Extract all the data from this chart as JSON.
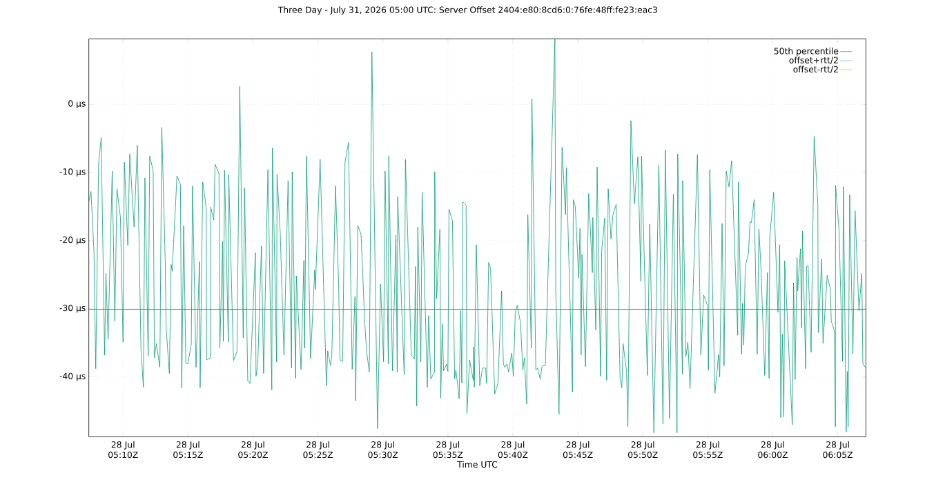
{
  "chart_data": {
    "type": "line",
    "title": "Three Day - July 31, 2026 05:00 UTC: Server Offset 2404:e80:8cd6:0:76fe:48ff:fe23:eac3",
    "xlabel": "Time UTC",
    "xlim": [
      "2026-07-28T05:07:22",
      "2026-07-28T06:07:10"
    ],
    "ylim": [
      -48.8,
      9.6
    ],
    "xticks": [
      {
        "value": "2026-07-28T05:10",
        "label": "28 Jul 05:10Z"
      },
      {
        "value": "2026-07-28T05:15",
        "label": "28 Jul 05:15Z"
      },
      {
        "value": "2026-07-28T05:20",
        "label": "28 Jul 05:20Z"
      },
      {
        "value": "2026-07-28T05:25",
        "label": "28 Jul 05:25Z"
      },
      {
        "value": "2026-07-28T05:30",
        "label": "28 Jul 05:30Z"
      },
      {
        "value": "2026-07-28T05:35",
        "label": "28 Jul 05:35Z"
      },
      {
        "value": "2026-07-28T05:40",
        "label": "28 Jul 05:40Z"
      },
      {
        "value": "2026-07-28T05:45",
        "label": "28 Jul 05:45Z"
      },
      {
        "value": "2026-07-28T05:50",
        "label": "28 Jul 05:50Z"
      },
      {
        "value": "2026-07-28T05:55",
        "label": "28 Jul 05:55Z"
      },
      {
        "value": "2026-07-28T06:00",
        "label": "28 Jul 06:00Z"
      },
      {
        "value": "2026-07-28T06:05",
        "label": "28 Jul 06:05Z"
      }
    ],
    "yticks": [
      {
        "value": -40,
        "label": "-40 µs"
      },
      {
        "value": -30,
        "label": "-30 µs"
      },
      {
        "value": -20,
        "label": "-20 µs"
      },
      {
        "value": -10,
        "label": "-10 µs"
      },
      {
        "value": 0,
        "label": "0 µs"
      }
    ],
    "grid": true,
    "legend": "top right",
    "marker": "none",
    "line_style": "solid",
    "series": [
      {
        "name": "50th percentile",
        "color": "#9400d3",
        "x": [
          "2026-07-28T05:07:22",
          "2026-07-28T06:07:10"
        ],
        "values": [
          -30.1,
          -30.1
        ]
      },
      {
        "color": "#009e73",
        "x": [
          "2026-07-28T05:07:22",
          "2026-07-28T05:07:32",
          "2026-07-28T05:07:46",
          "2026-07-28T05:07:54",
          "2026-07-28T05:08:07",
          "2026-07-28T05:08:19",
          "2026-07-28T05:08:35",
          "2026-07-28T05:08:41",
          "2026-07-28T05:08:51",
          "2026-07-28T05:09:10",
          "2026-07-28T05:09:22",
          "2026-07-28T05:09:32",
          "2026-07-28T05:09:48",
          "2026-07-28T05:10:00",
          "2026-07-28T05:10:06",
          "2026-07-28T05:10:22",
          "2026-07-28T05:10:31",
          "2026-07-28T05:10:51",
          "2026-07-28T05:11:06",
          "2026-07-28T05:11:23",
          "2026-07-28T05:11:34",
          "2026-07-28T05:11:41",
          "2026-07-28T05:11:56",
          "2026-07-28T05:12:03",
          "2026-07-28T05:12:19",
          "2026-07-28T05:12:25",
          "2026-07-28T05:12:34",
          "2026-07-28T05:12:50",
          "2026-07-28T05:12:59",
          "2026-07-28T05:13:15",
          "2026-07-28T05:13:19",
          "2026-07-28T05:13:34",
          "2026-07-28T05:13:42",
          "2026-07-28T05:13:47",
          "2026-07-28T05:14:09",
          "2026-07-28T05:14:25",
          "2026-07-28T05:14:31",
          "2026-07-28T05:14:40",
          "2026-07-28T05:14:50",
          "2026-07-28T05:14:59",
          "2026-07-28T05:15:15",
          "2026-07-28T05:15:21",
          "2026-07-28T05:15:37",
          "2026-07-28T05:15:53",
          "2026-07-28T05:15:56",
          "2026-07-28T05:16:08",
          "2026-07-28T05:16:24",
          "2026-07-28T05:16:26",
          "2026-07-28T05:16:43",
          "2026-07-28T05:16:45",
          "2026-07-28T05:16:59",
          "2026-07-28T05:17:05",
          "2026-07-28T05:17:23",
          "2026-07-28T05:17:27",
          "2026-07-28T05:17:40",
          "2026-07-28T05:17:43",
          "2026-07-28T05:17:49",
          "2026-07-28T05:18:06",
          "2026-07-28T05:18:08",
          "2026-07-28T05:18:30",
          "2026-07-28T05:18:46",
          "2026-07-28T05:18:59",
          "2026-07-28T05:19:15",
          "2026-07-28T05:19:21",
          "2026-07-28T05:19:36",
          "2026-07-28T05:19:46",
          "2026-07-28T05:20:11",
          "2026-07-28T05:20:14",
          "2026-07-28T05:20:22",
          "2026-07-28T05:20:39",
          "2026-07-28T05:20:49",
          "2026-07-28T05:21:09",
          "2026-07-28T05:21:27",
          "2026-07-28T05:21:30",
          "2026-07-28T05:21:49",
          "2026-07-28T05:21:51",
          "2026-07-28T05:22:06",
          "2026-07-28T05:22:23",
          "2026-07-28T05:22:42",
          "2026-07-28T05:22:58",
          "2026-07-28T05:23:01",
          "2026-07-28T05:23:17",
          "2026-07-28T05:23:20",
          "2026-07-28T05:23:42",
          "2026-07-28T05:23:55",
          "2026-07-28T05:23:58",
          "2026-07-28T05:24:07",
          "2026-07-28T05:24:26",
          "2026-07-28T05:24:45",
          "2026-07-28T05:24:48",
          "2026-07-28T05:25:10",
          "2026-07-28T05:25:39",
          "2026-07-28T05:25:45",
          "2026-07-28T05:25:58",
          "2026-07-28T05:26:04",
          "2026-07-28T05:26:21",
          "2026-07-28T05:26:35",
          "2026-07-28T05:26:42",
          "2026-07-28T05:26:54",
          "2026-07-28T05:27:05",
          "2026-07-28T05:27:21",
          "2026-07-28T05:27:38",
          "2026-07-28T05:27:51",
          "2026-07-28T05:27:54",
          "2026-07-28T05:28:04",
          "2026-07-28T05:28:19",
          "2026-07-28T05:28:36",
          "2026-07-28T05:28:44",
          "2026-07-28T05:28:57",
          "2026-07-28T05:29:09",
          "2026-07-28T05:29:35",
          "2026-07-28T05:29:49",
          "2026-07-28T05:30:03",
          "2026-07-28T05:30:10",
          "2026-07-28T05:30:25",
          "2026-07-28T05:30:27",
          "2026-07-28T05:30:44",
          "2026-07-28T05:31:00",
          "2026-07-28T05:31:06",
          "2026-07-28T05:31:08",
          "2026-07-28T05:31:38",
          "2026-07-28T05:31:44",
          "2026-07-28T05:32:11",
          "2026-07-28T05:32:25",
          "2026-07-28T05:32:30",
          "2026-07-28T05:32:36",
          "2026-07-28T05:32:41",
          "2026-07-28T05:32:55",
          "2026-07-28T05:33:01",
          "2026-07-28T05:33:25",
          "2026-07-28T05:33:31",
          "2026-07-28T05:33:41",
          "2026-07-28T05:33:58",
          "2026-07-28T05:33:59",
          "2026-07-28T05:34:08",
          "2026-07-28T05:34:23",
          "2026-07-28T05:34:27",
          "2026-07-28T05:34:34",
          "2026-07-28T05:34:40",
          "2026-07-28T05:34:55",
          "2026-07-28T05:35:00",
          "2026-07-28T05:35:05",
          "2026-07-28T05:35:21",
          "2026-07-28T05:35:31",
          "2026-07-28T05:35:37",
          "2026-07-28T05:35:52",
          "2026-07-28T05:35:59",
          "2026-07-28T05:36:04",
          "2026-07-28T05:36:09",
          "2026-07-28T05:36:24",
          "2026-07-28T05:36:28",
          "2026-07-28T05:36:40",
          "2026-07-28T05:36:57",
          "2026-07-28T05:36:59",
          "2026-07-28T05:37:02",
          "2026-07-28T05:37:11",
          "2026-07-28T05:37:27",
          "2026-07-28T05:37:40",
          "2026-07-28T05:37:54",
          "2026-07-28T05:37:59",
          "2026-07-28T05:38:08",
          "2026-07-28T05:38:17",
          "2026-07-28T05:38:36",
          "2026-07-28T05:38:51",
          "2026-07-28T05:39:08",
          "2026-07-28T05:39:16",
          "2026-07-28T05:39:23",
          "2026-07-28T05:39:33",
          "2026-07-28T05:39:40",
          "2026-07-28T05:39:55",
          "2026-07-28T05:40:02",
          "2026-07-28T05:40:11",
          "2026-07-28T05:40:20",
          "2026-07-28T05:40:35",
          "2026-07-28T05:40:46",
          "2026-07-28T05:40:53",
          "2026-07-28T05:41:04",
          "2026-07-28T05:41:09",
          "2026-07-28T05:41:25",
          "2026-07-28T05:41:28",
          "2026-07-28T05:41:46",
          "2026-07-28T05:41:54",
          "2026-07-28T05:42:06",
          "2026-07-28T05:42:15",
          "2026-07-28T05:42:30",
          "2026-07-28T05:43:14",
          "2026-07-28T05:43:18",
          "2026-07-28T05:43:33",
          "2026-07-28T05:43:47",
          "2026-07-28T05:44:03",
          "2026-07-28T05:44:07",
          "2026-07-28T05:44:35",
          "2026-07-28T05:44:39",
          "2026-07-28T05:44:48",
          "2026-07-28T05:45:04",
          "2026-07-28T05:45:10",
          "2026-07-28T05:45:15",
          "2026-07-28T05:45:19",
          "2026-07-28T05:45:35",
          "2026-07-28T05:45:50",
          "2026-07-28T05:46:07",
          "2026-07-28T05:46:09",
          "2026-07-28T05:46:23",
          "2026-07-28T05:46:29",
          "2026-07-28T05:46:45",
          "2026-07-28T05:46:50",
          "2026-07-28T05:47:04",
          "2026-07-28T05:47:13",
          "2026-07-28T05:47:20",
          "2026-07-28T05:47:33",
          "2026-07-28T05:47:42",
          "2026-07-28T05:47:57",
          "2026-07-28T05:48:15",
          "2026-07-28T05:48:23",
          "2026-07-28T05:48:29",
          "2026-07-28T05:48:45",
          "2026-07-28T05:48:51",
          "2026-07-28T05:49:05",
          "2026-07-28T05:49:21",
          "2026-07-28T05:49:37",
          "2026-07-28T05:49:51",
          "2026-07-28T05:49:54",
          "2026-07-28T05:50:21",
          "2026-07-28T05:50:32",
          "2026-07-28T05:50:51",
          "2026-07-28T05:51:14",
          "2026-07-28T05:51:33",
          "2026-07-28T05:51:44",
          "2026-07-28T05:52:03",
          "2026-07-28T05:52:21",
          "2026-07-28T05:52:38",
          "2026-07-28T05:52:41",
          "2026-07-28T05:53:03",
          "2026-07-28T05:53:04",
          "2026-07-28T05:53:19",
          "2026-07-28T05:53:28",
          "2026-07-28T05:53:38",
          "2026-07-28T05:54:12",
          "2026-07-28T05:54:28",
          "2026-07-28T05:54:41",
          "2026-07-28T05:54:59",
          "2026-07-28T05:55:03",
          "2026-07-28T05:55:09",
          "2026-07-28T05:55:33",
          "2026-07-28T05:55:50",
          "2026-07-28T05:55:55",
          "2026-07-28T05:56:06",
          "2026-07-28T05:56:15",
          "2026-07-28T05:56:25",
          "2026-07-28T05:56:38",
          "2026-07-28T05:56:50",
          "2026-07-28T05:57:18",
          "2026-07-28T05:57:21",
          "2026-07-28T05:57:36",
          "2026-07-28T05:57:40",
          "2026-07-28T05:57:46",
          "2026-07-28T05:57:53",
          "2026-07-28T05:58:08",
          "2026-07-28T05:58:15",
          "2026-07-28T05:58:21",
          "2026-07-28T05:58:34",
          "2026-07-28T05:58:48",
          "2026-07-28T05:58:56",
          "2026-07-28T05:59:05",
          "2026-07-28T05:59:23",
          "2026-07-28T05:59:35",
          "2026-07-28T05:59:43",
          "2026-07-28T05:59:46",
          "2026-07-28T06:00:04",
          "2026-07-28T06:00:24",
          "2026-07-28T06:00:32",
          "2026-07-28T06:00:37",
          "2026-07-28T06:00:44",
          "2026-07-28T06:00:51",
          "2026-07-28T06:00:55",
          "2026-07-28T06:01:30",
          "2026-07-28T06:01:36",
          "2026-07-28T06:01:43",
          "2026-07-28T06:01:52",
          "2026-07-28T06:01:55",
          "2026-07-28T06:02:08",
          "2026-07-28T06:02:13",
          "2026-07-28T06:02:17",
          "2026-07-28T06:02:32",
          "2026-07-28T06:02:36",
          "2026-07-28T06:02:43",
          "2026-07-28T06:02:57",
          "2026-07-28T06:03:11",
          "2026-07-28T06:03:28",
          "2026-07-28T06:03:30",
          "2026-07-28T06:03:46",
          "2026-07-28T06:03:52",
          "2026-07-28T06:04:11",
          "2026-07-28T06:04:26",
          "2026-07-28T06:04:30",
          "2026-07-28T06:04:45",
          "2026-07-28T06:04:49",
          "2026-07-28T06:04:50",
          "2026-07-28T06:05:06",
          "2026-07-28T06:05:22",
          "2026-07-28T06:05:26",
          "2026-07-28T06:05:39",
          "2026-07-28T06:05:44",
          "2026-07-28T06:05:48",
          "2026-07-28T06:05:55",
          "2026-07-28T06:06:10",
          "2026-07-28T06:06:20",
          "2026-07-28T06:06:38",
          "2026-07-28T06:06:51",
          "2026-07-28T06:06:56",
          "2026-07-28T06:07:10"
        ],
        "values": [
          -14.3,
          -12.8,
          -21.8,
          -38.8,
          -8.8,
          -4.9,
          -36.8,
          -24.8,
          -34.5,
          -9.8,
          -31.8,
          -12.4,
          -16.6,
          -34.9,
          -8.5,
          -20.7,
          -7.3,
          -18.0,
          -6.0,
          -36.2,
          -41.5,
          -10.8,
          -37.0,
          -7.6,
          -9.7,
          -37.2,
          -35.1,
          -38.6,
          -3.4,
          -23.3,
          -32.8,
          -39.5,
          -23.5,
          -24.5,
          -10.5,
          -11.8,
          -41.6,
          -17.8,
          -38.0,
          -38.1,
          -35.2,
          -12.0,
          -38.6,
          -23.1,
          -41.6,
          -11.4,
          -15.2,
          -37.5,
          -37.2,
          -15.1,
          -17.0,
          -8.8,
          -10.2,
          -35.8,
          -20.1,
          -34.8,
          -9.7,
          -34.9,
          -10.3,
          -37.6,
          -36.3,
          2.6,
          -34.3,
          -12.3,
          -40.6,
          -41.0,
          -21.8,
          -39.9,
          -38.2,
          -20.8,
          -39.5,
          -9.6,
          -41.9,
          -6.4,
          -37.8,
          -10.3,
          -19.0,
          -36.8,
          -11.2,
          -38.7,
          -9.9,
          -40.2,
          -25.2,
          -38.9,
          -22.9,
          -35.8,
          -7.6,
          -37.3,
          -24.3,
          -27.2,
          -8.1,
          -41.3,
          -36.2,
          -38.3,
          -36.9,
          -12.0,
          -25.8,
          -37.6,
          -37.7,
          -8.5,
          -5.6,
          -38.9,
          -28.2,
          -43.5,
          -17.8,
          -19.1,
          -32.0,
          -36.1,
          -39.3,
          7.7,
          -47.6,
          -26.4,
          -37.8,
          -9.8,
          -38.1,
          -7.6,
          -39.1,
          -19.2,
          -39.3,
          -13.6,
          -39.7,
          -8.1,
          -36.8,
          -37.4,
          -23.8,
          -44.3,
          -18.0,
          -37.8,
          -12.9,
          -41.5,
          -31.0,
          -40.3,
          -39.3,
          -9.9,
          -28.5,
          -18.3,
          -43.1,
          -32.2,
          -39.1,
          -38.1,
          -39.2,
          -15.4,
          -17.1,
          -40.3,
          -39.0,
          -43.2,
          -30.3,
          -40.9,
          -14.3,
          -14.8,
          -45.4,
          -37.5,
          -40.5,
          -35.6,
          -41.5,
          -20.6,
          -41.3,
          -38.7,
          -38.7,
          -41.0,
          -23.2,
          -24.1,
          -42.5,
          -41.0,
          -27.4,
          -38.1,
          -38.6,
          -38.1,
          -39.3,
          -36.5,
          -39.9,
          -30.6,
          -29.5,
          -32.0,
          -39.0,
          -37.2,
          -44.0,
          -16.2,
          -35.8,
          0.8,
          -39.0,
          -38.7,
          -40.3,
          -38.4,
          -38.3,
          9.6,
          -27.4,
          -45.5,
          -6.3,
          -16.2,
          -9.3,
          -42.2,
          -14.0,
          -15.0,
          -25.5,
          -18.2,
          -36.8,
          -22.0,
          -38.5,
          -13.1,
          -24.7,
          -16.6,
          -33.1,
          -9.2,
          -39.9,
          -21.5,
          -16.7,
          -40.5,
          -12.4,
          -19.8,
          -16.2,
          -14.7,
          -40.2,
          -41.6,
          -35.1,
          -39.3,
          -47.3,
          -2.4,
          -14.6,
          -7.7,
          -26.0,
          -7.6,
          -39.8,
          -17.6,
          -48.2,
          -8.9,
          -46.9,
          -6.7,
          -46.1,
          -13.2,
          -48.2,
          -7.3,
          -39.6,
          -11.2,
          -37.0,
          -34.9,
          -41.7,
          -7.4,
          -36.8,
          -28.0,
          -29.6,
          -39.0,
          -9.6,
          -42.4,
          -36.7,
          -40.0,
          -17.5,
          -38.4,
          -9.8,
          -12.1,
          -8.3,
          -33.9,
          -11.4,
          -36.7,
          -29.2,
          -35.3,
          -23.8,
          -21.8,
          -17.2,
          -17.4,
          -14.0,
          -36.7,
          -18.3,
          -23.7,
          -39.8,
          -24.7,
          -40.2,
          -19.6,
          -12.9,
          -30.5,
          -20.6,
          -46.0,
          -33.7,
          -45.9,
          -23.0,
          -47.0,
          -26.2,
          -40.4,
          -22.5,
          -27.4,
          -21.2,
          -32.8,
          -18.6,
          -38.8,
          -23.8,
          -23.7,
          -36.4,
          -4.7,
          -14.7,
          -33.5,
          -22.7,
          -35.1,
          -25.1,
          -27.1,
          -31.8,
          -33.3,
          -47.3,
          -11.9,
          -18.5,
          -37.7,
          -12.1,
          -48.1,
          -39.2,
          -47.3,
          -13.3,
          -36.6,
          -15.6,
          -30.3,
          -24.8,
          -38.1,
          -38.7
        ]
      },
      {
        "name": "offset+rtt/2",
        "color": "#56b4e9"
      },
      {
        "name": "offset-rtt/2",
        "color": "#e69f00"
      }
    ]
  }
}
